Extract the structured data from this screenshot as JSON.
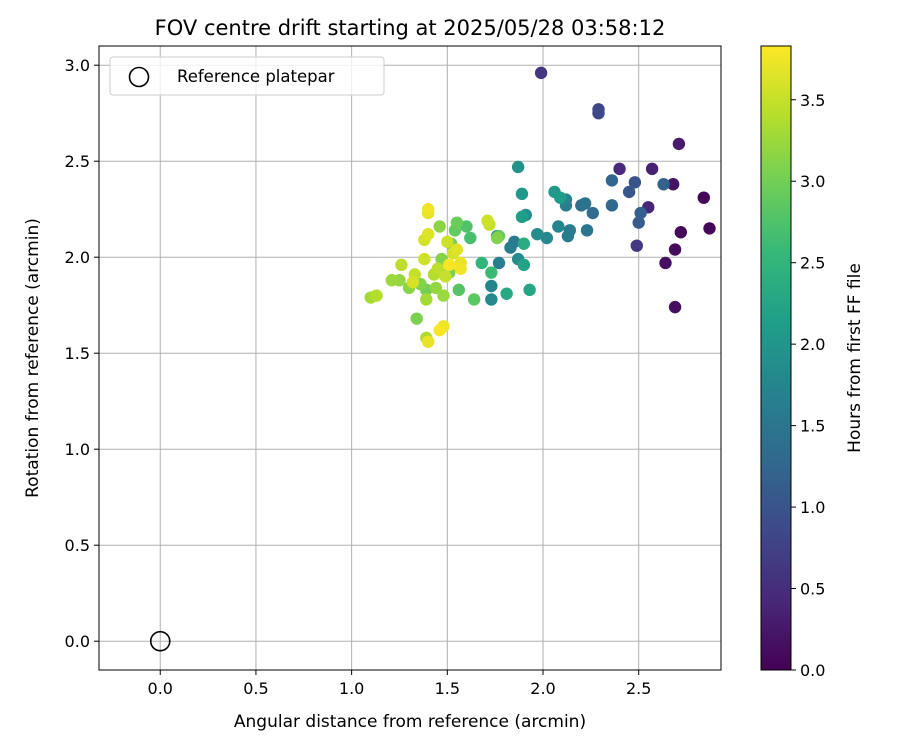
{
  "chart_data": {
    "type": "scatter",
    "title": "FOV centre drift starting at 2025/05/28 03:58:12",
    "xlabel": "Angular distance from reference (arcmin)",
    "ylabel": "Rotation from reference (arcmin)",
    "xlim": [
      -0.32,
      2.93
    ],
    "ylim": [
      -0.15,
      3.1
    ],
    "xticks": [
      "0.0",
      "0.5",
      "1.0",
      "1.5",
      "2.0",
      "2.5"
    ],
    "yticks": [
      "0.0",
      "0.5",
      "1.0",
      "1.5",
      "2.0",
      "2.5",
      "3.0"
    ],
    "grid": true,
    "legend": {
      "placement": "top-left",
      "label": "Reference platepar"
    },
    "reference_point": {
      "x": 0.0,
      "y": 0.0
    },
    "colorbar": {
      "label": "Hours from first FF file",
      "min": 0.0,
      "max": 3.83,
      "ticks": [
        "0.0",
        "0.5",
        "1.0",
        "1.5",
        "2.0",
        "2.5",
        "3.0",
        "3.5"
      ],
      "colormap": [
        "#440154",
        "#482878",
        "#3e4989",
        "#31688e",
        "#26828e",
        "#1f9e89",
        "#35b779",
        "#6ece58",
        "#b5de2b",
        "#fde725"
      ]
    },
    "points": [
      {
        "x": 2.87,
        "y": 2.15,
        "h": 0.05
      },
      {
        "x": 2.84,
        "y": 2.31,
        "h": 0.08
      },
      {
        "x": 2.72,
        "y": 2.13,
        "h": 0.1
      },
      {
        "x": 2.69,
        "y": 2.04,
        "h": 0.12
      },
      {
        "x": 2.69,
        "y": 1.74,
        "h": 0.14
      },
      {
        "x": 2.64,
        "y": 1.97,
        "h": 0.16
      },
      {
        "x": 2.68,
        "y": 2.38,
        "h": 0.2
      },
      {
        "x": 2.71,
        "y": 2.59,
        "h": 0.3
      },
      {
        "x": 2.57,
        "y": 2.46,
        "h": 0.35
      },
      {
        "x": 2.55,
        "y": 2.26,
        "h": 0.4
      },
      {
        "x": 2.4,
        "y": 2.46,
        "h": 0.45
      },
      {
        "x": 1.99,
        "y": 2.96,
        "h": 0.6
      },
      {
        "x": 2.49,
        "y": 2.06,
        "h": 0.65
      },
      {
        "x": 2.29,
        "y": 2.77,
        "h": 0.8
      },
      {
        "x": 2.29,
        "y": 2.75,
        "h": 0.85
      },
      {
        "x": 2.48,
        "y": 2.39,
        "h": 1.0
      },
      {
        "x": 2.45,
        "y": 2.34,
        "h": 1.05
      },
      {
        "x": 2.5,
        "y": 2.18,
        "h": 1.1
      },
      {
        "x": 2.51,
        "y": 2.23,
        "h": 1.15
      },
      {
        "x": 2.63,
        "y": 2.38,
        "h": 1.2
      },
      {
        "x": 2.36,
        "y": 2.4,
        "h": 1.25
      },
      {
        "x": 2.36,
        "y": 2.27,
        "h": 1.3
      },
      {
        "x": 2.26,
        "y": 2.23,
        "h": 1.35
      },
      {
        "x": 2.2,
        "y": 2.27,
        "h": 1.4
      },
      {
        "x": 2.22,
        "y": 2.28,
        "h": 1.45
      },
      {
        "x": 2.23,
        "y": 2.14,
        "h": 1.5
      },
      {
        "x": 2.14,
        "y": 2.14,
        "h": 1.55
      },
      {
        "x": 2.13,
        "y": 2.11,
        "h": 1.6
      },
      {
        "x": 2.12,
        "y": 2.27,
        "h": 1.65
      },
      {
        "x": 2.12,
        "y": 2.3,
        "h": 1.7
      },
      {
        "x": 2.08,
        "y": 2.16,
        "h": 1.75
      },
      {
        "x": 2.02,
        "y": 2.1,
        "h": 1.8
      },
      {
        "x": 1.97,
        "y": 2.12,
        "h": 1.85
      },
      {
        "x": 1.91,
        "y": 2.22,
        "h": 1.9
      },
      {
        "x": 1.85,
        "y": 2.08,
        "h": 1.55
      },
      {
        "x": 1.83,
        "y": 2.05,
        "h": 1.6
      },
      {
        "x": 1.77,
        "y": 1.97,
        "h": 1.65
      },
      {
        "x": 1.76,
        "y": 2.11,
        "h": 1.7
      },
      {
        "x": 1.73,
        "y": 1.85,
        "h": 1.75
      },
      {
        "x": 1.73,
        "y": 1.78,
        "h": 1.8
      },
      {
        "x": 1.87,
        "y": 1.99,
        "h": 1.85
      },
      {
        "x": 1.87,
        "y": 2.47,
        "h": 1.95
      },
      {
        "x": 1.89,
        "y": 2.33,
        "h": 2.0
      },
      {
        "x": 2.06,
        "y": 2.34,
        "h": 2.05
      },
      {
        "x": 2.09,
        "y": 2.31,
        "h": 2.1
      },
      {
        "x": 1.89,
        "y": 2.21,
        "h": 2.15
      },
      {
        "x": 1.9,
        "y": 1.96,
        "h": 2.2
      },
      {
        "x": 1.93,
        "y": 1.83,
        "h": 2.25
      },
      {
        "x": 1.81,
        "y": 1.81,
        "h": 2.3
      },
      {
        "x": 1.9,
        "y": 2.07,
        "h": 2.35
      },
      {
        "x": 1.68,
        "y": 1.97,
        "h": 2.5
      },
      {
        "x": 1.73,
        "y": 1.92,
        "h": 2.6
      },
      {
        "x": 1.62,
        "y": 2.1,
        "h": 2.7
      },
      {
        "x": 1.6,
        "y": 2.16,
        "h": 2.75
      },
      {
        "x": 1.56,
        "y": 1.83,
        "h": 2.8
      },
      {
        "x": 1.64,
        "y": 1.78,
        "h": 2.85
      },
      {
        "x": 1.54,
        "y": 2.14,
        "h": 2.9
      },
      {
        "x": 1.55,
        "y": 2.18,
        "h": 2.95
      },
      {
        "x": 1.52,
        "y": 2.07,
        "h": 3.0
      },
      {
        "x": 1.51,
        "y": 1.92,
        "h": 3.05
      },
      {
        "x": 1.47,
        "y": 1.99,
        "h": 3.1
      },
      {
        "x": 1.46,
        "y": 2.16,
        "h": 3.15
      },
      {
        "x": 1.44,
        "y": 1.84,
        "h": 3.2
      },
      {
        "x": 1.48,
        "y": 1.8,
        "h": 3.25
      },
      {
        "x": 1.39,
        "y": 1.78,
        "h": 3.3
      },
      {
        "x": 1.39,
        "y": 1.58,
        "h": 3.35
      },
      {
        "x": 1.34,
        "y": 1.68,
        "h": 3.05
      },
      {
        "x": 1.39,
        "y": 1.83,
        "h": 3.0
      },
      {
        "x": 1.36,
        "y": 1.86,
        "h": 3.1
      },
      {
        "x": 1.3,
        "y": 1.84,
        "h": 3.15
      },
      {
        "x": 1.25,
        "y": 1.88,
        "h": 3.2
      },
      {
        "x": 1.21,
        "y": 1.88,
        "h": 3.25
      },
      {
        "x": 1.1,
        "y": 1.79,
        "h": 3.3
      },
      {
        "x": 1.13,
        "y": 1.8,
        "h": 3.4
      },
      {
        "x": 1.26,
        "y": 1.96,
        "h": 3.45
      },
      {
        "x": 1.33,
        "y": 1.91,
        "h": 3.5
      },
      {
        "x": 1.38,
        "y": 1.99,
        "h": 3.55
      },
      {
        "x": 1.43,
        "y": 1.91,
        "h": 3.4
      },
      {
        "x": 1.45,
        "y": 1.94,
        "h": 3.45
      },
      {
        "x": 1.49,
        "y": 1.9,
        "h": 3.5
      },
      {
        "x": 1.5,
        "y": 2.08,
        "h": 3.55
      },
      {
        "x": 1.53,
        "y": 2.02,
        "h": 3.6
      },
      {
        "x": 1.55,
        "y": 2.04,
        "h": 3.65
      },
      {
        "x": 1.57,
        "y": 1.97,
        "h": 3.7
      },
      {
        "x": 1.57,
        "y": 1.94,
        "h": 3.75
      },
      {
        "x": 1.51,
        "y": 1.96,
        "h": 3.8
      },
      {
        "x": 1.38,
        "y": 2.09,
        "h": 3.6
      },
      {
        "x": 1.4,
        "y": 2.12,
        "h": 3.65
      },
      {
        "x": 1.4,
        "y": 2.23,
        "h": 3.7
      },
      {
        "x": 1.4,
        "y": 2.25,
        "h": 3.75
      },
      {
        "x": 1.46,
        "y": 1.62,
        "h": 3.8
      },
      {
        "x": 1.48,
        "y": 1.64,
        "h": 3.75
      },
      {
        "x": 1.4,
        "y": 1.56,
        "h": 3.7
      },
      {
        "x": 1.32,
        "y": 1.87,
        "h": 3.6
      },
      {
        "x": 1.71,
        "y": 2.19,
        "h": 3.55
      },
      {
        "x": 1.72,
        "y": 2.17,
        "h": 3.5
      },
      {
        "x": 1.77,
        "y": 2.11,
        "h": 2.9
      },
      {
        "x": 1.76,
        "y": 2.1,
        "h": 3.1
      }
    ]
  }
}
